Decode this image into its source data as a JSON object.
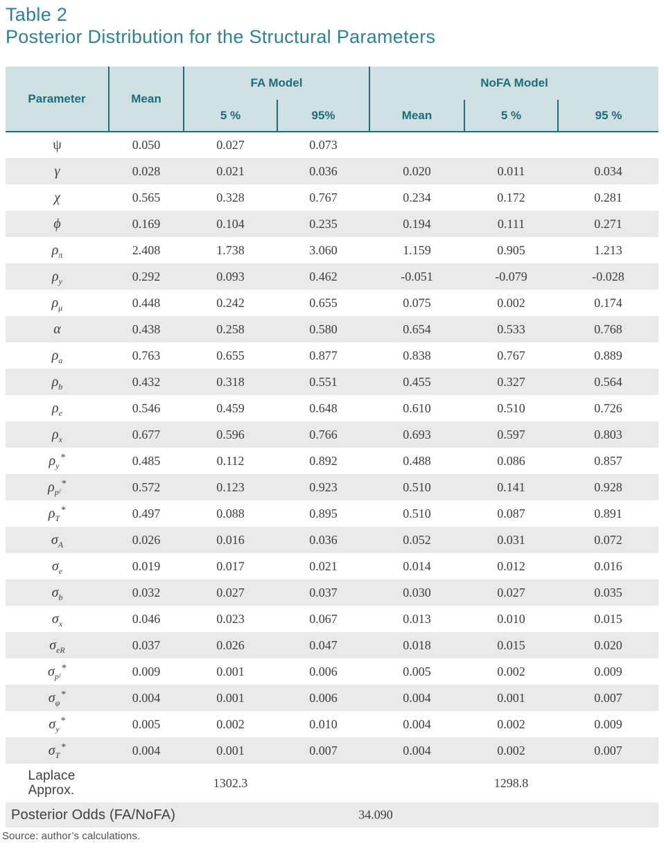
{
  "title": "Table 2",
  "subtitle": "Posterior Distribution for the Structural Parameters",
  "source": "Source: author’s calculations.",
  "colors": {
    "title_teal": "#2e8191",
    "header_teal": "#1e6b7a",
    "header_bg": "#cfe0e2",
    "stripe_gray": "#e9e9e9",
    "body_text": "#3d3d3d"
  },
  "header": {
    "parameter": "Parameter",
    "mean": "Mean",
    "fa_model": "FA Model",
    "nofa_model": "NoFA Model",
    "fa_cols": [
      "5 %",
      "95%"
    ],
    "nofa_cols": [
      "Mean",
      "5 %",
      "95 %"
    ]
  },
  "rows": [
    {
      "param": {
        "base": "ψ",
        "sub": "",
        "star": false,
        "upright": true
      },
      "values": [
        "0.050",
        "0.027",
        "0.073",
        "",
        "",
        ""
      ]
    },
    {
      "param": {
        "base": "γ",
        "sub": "",
        "star": false,
        "upright": false
      },
      "values": [
        "0.028",
        "0.021",
        "0.036",
        "0.020",
        "0.011",
        "0.034"
      ]
    },
    {
      "param": {
        "base": "χ",
        "sub": "",
        "star": false,
        "upright": false
      },
      "values": [
        "0.565",
        "0.328",
        "0.767",
        "0.234",
        "0.172",
        "0.281"
      ]
    },
    {
      "param": {
        "base": "ϕ",
        "sub": "",
        "star": false,
        "upright": false
      },
      "values": [
        "0.169",
        "0.104",
        "0.235",
        "0.194",
        "0.111",
        "0.271"
      ]
    },
    {
      "param": {
        "base": "ρ",
        "sub": "π",
        "star": false,
        "upright": false
      },
      "values": [
        "2.408",
        "1.738",
        "3.060",
        "1.159",
        "0.905",
        "1.213"
      ]
    },
    {
      "param": {
        "base": "ρ",
        "sub": "y",
        "star": false,
        "upright": false
      },
      "values": [
        "0.292",
        "0.093",
        "0.462",
        "-0.051",
        "-0.079",
        "-0.028"
      ]
    },
    {
      "param": {
        "base": "ρ",
        "sub": "μ",
        "star": false,
        "upright": false
      },
      "values": [
        "0.448",
        "0.242",
        "0.655",
        "0.075",
        "0.002",
        "0.174"
      ]
    },
    {
      "param": {
        "base": "α",
        "sub": "",
        "star": false,
        "upright": false
      },
      "values": [
        "0.438",
        "0.258",
        "0.580",
        "0.654",
        "0.533",
        "0.768"
      ]
    },
    {
      "param": {
        "base": "ρ",
        "sub": "a",
        "star": false,
        "upright": false
      },
      "values": [
        "0.763",
        "0.655",
        "0.877",
        "0.838",
        "0.767",
        "0.889"
      ]
    },
    {
      "param": {
        "base": "ρ",
        "sub": "b",
        "star": false,
        "upright": false
      },
      "values": [
        "0.432",
        "0.318",
        "0.551",
        "0.455",
        "0.327",
        "0.564"
      ]
    },
    {
      "param": {
        "base": "ρ",
        "sub": "e",
        "star": false,
        "upright": false
      },
      "values": [
        "0.546",
        "0.459",
        "0.648",
        "0.610",
        "0.510",
        "0.726"
      ]
    },
    {
      "param": {
        "base": "ρ",
        "sub": "x",
        "star": false,
        "upright": false
      },
      "values": [
        "0.677",
        "0.596",
        "0.766",
        "0.693",
        "0.597",
        "0.803"
      ]
    },
    {
      "param": {
        "base": "ρ",
        "sub": "y",
        "star": true,
        "upright": false
      },
      "values": [
        "0.485",
        "0.112",
        "0.892",
        "0.488",
        "0.086",
        "0.857"
      ]
    },
    {
      "param": {
        "base": "ρ",
        "sub": "pᶠ",
        "star": true,
        "upright": false
      },
      "values": [
        "0.572",
        "0.123",
        "0.923",
        "0.510",
        "0.141",
        "0.928"
      ]
    },
    {
      "param": {
        "base": "ρ",
        "sub": "T",
        "star": true,
        "upright": false
      },
      "values": [
        "0.497",
        "0.088",
        "0.895",
        "0.510",
        "0.087",
        "0.891"
      ]
    },
    {
      "param": {
        "base": "σ",
        "sub": "A",
        "star": false,
        "upright": false
      },
      "values": [
        "0.026",
        "0.016",
        "0.036",
        "0.052",
        "0.031",
        "0.072"
      ]
    },
    {
      "param": {
        "base": "σ",
        "sub": "e",
        "star": false,
        "upright": false
      },
      "values": [
        "0.019",
        "0.017",
        "0.021",
        "0.014",
        "0.012",
        "0.016"
      ]
    },
    {
      "param": {
        "base": "σ",
        "sub": "b",
        "star": false,
        "upright": false
      },
      "values": [
        "0.032",
        "0.027",
        "0.037",
        "0.030",
        "0.027",
        "0.035"
      ]
    },
    {
      "param": {
        "base": "σ",
        "sub": "x",
        "star": false,
        "upright": false
      },
      "values": [
        "0.046",
        "0.023",
        "0.067",
        "0.013",
        "0.010",
        "0.015"
      ]
    },
    {
      "param": {
        "base": "σ",
        "sub": "eR",
        "star": false,
        "upright": false
      },
      "values": [
        "0.037",
        "0.026",
        "0.047",
        "0.018",
        "0.015",
        "0.020"
      ]
    },
    {
      "param": {
        "base": "σ",
        "sub": "pᶠ",
        "star": true,
        "upright": false
      },
      "values": [
        "0.009",
        "0.001",
        "0.006",
        "0.005",
        "0.002",
        "0.009"
      ]
    },
    {
      "param": {
        "base": "σ",
        "sub": "φ",
        "star": true,
        "upright": false
      },
      "values": [
        "0.004",
        "0.001",
        "0.006",
        "0.004",
        "0.001",
        "0.007"
      ]
    },
    {
      "param": {
        "base": "σ",
        "sub": "y",
        "star": true,
        "upright": false
      },
      "values": [
        "0.005",
        "0.002",
        "0.010",
        "0.004",
        "0.002",
        "0.009"
      ]
    },
    {
      "param": {
        "base": "σ",
        "sub": "T",
        "star": true,
        "upright": false
      },
      "values": [
        "0.004",
        "0.001",
        "0.007",
        "0.004",
        "0.002",
        "0.007"
      ]
    }
  ],
  "laplace": {
    "label": "Laplace Approx.",
    "fa_value": "1302.3",
    "nofa_value": "1298.8"
  },
  "posterior_odds": {
    "label": "Posterior Odds (FA/NoFA)",
    "value": "34.090"
  }
}
